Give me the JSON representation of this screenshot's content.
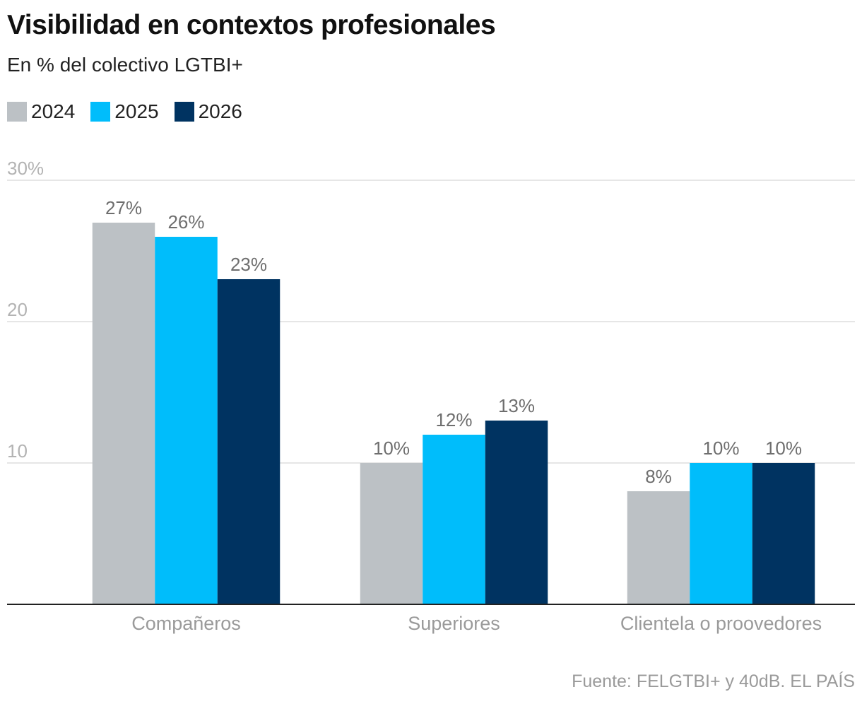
{
  "title": "Visibilidad en contextos profesionales",
  "subtitle": "En % del colectivo LGTBI+",
  "source": "Fuente: FELGTBI+ y 40dB. EL PAÍS",
  "chart_data": {
    "type": "bar",
    "categories": [
      "Compañeros",
      "Superiores",
      "Clientela o proovedores"
    ],
    "series": [
      {
        "name": "2024",
        "color": "#bcc1c5",
        "values": [
          27,
          10,
          8
        ]
      },
      {
        "name": "2025",
        "color": "#00bdfb",
        "values": [
          26,
          12,
          10
        ]
      },
      {
        "name": "2026",
        "color": "#003361",
        "values": [
          23,
          13,
          10
        ]
      }
    ],
    "data_labels": [
      [
        "27%",
        "10%",
        "8%"
      ],
      [
        "26%",
        "12%",
        "10%"
      ],
      [
        "23%",
        "13%",
        "10%"
      ]
    ],
    "y_ticks": [
      {
        "value": 10,
        "label": "10"
      },
      {
        "value": 20,
        "label": "20"
      },
      {
        "value": 30,
        "label": "30%"
      }
    ],
    "ylim": [
      0,
      30
    ],
    "grid": true,
    "legend_position": "top-left"
  }
}
